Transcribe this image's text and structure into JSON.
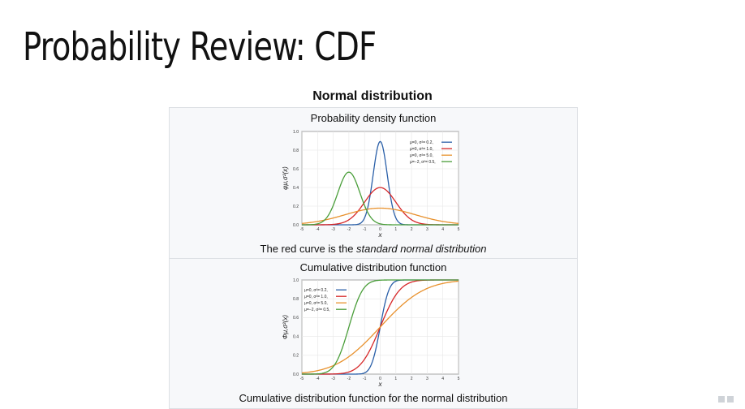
{
  "slide": {
    "title": "Probability Review: CDF"
  },
  "figure": {
    "heading": "Normal distribution",
    "pdf_title": "Probability density function",
    "pdf_caption_prefix": "The red curve is the ",
    "pdf_caption_italic": "standard normal distribution",
    "cdf_title": "Cumulative distribution function",
    "cdf_caption": "Cumulative distribution function for the normal distribution"
  },
  "chart_data": [
    {
      "type": "line",
      "title": "Probability density function",
      "xlabel": "x",
      "ylabel": "φμ,σ²(x)",
      "xlim": [
        -5,
        5
      ],
      "ylim": [
        0,
        1.0
      ],
      "xticks": [
        -5,
        -4,
        -3,
        -2,
        -1,
        0,
        1,
        2,
        3,
        4,
        5
      ],
      "yticks": [
        0.0,
        0.2,
        0.4,
        0.6,
        0.8,
        1.0
      ],
      "grid": true,
      "legend_position": "top-right",
      "series": [
        {
          "name": "μ=0,   σ²= 0.2,",
          "mu": 0,
          "var": 0.2,
          "color": "#2a5fa8",
          "x": [
            -1.5,
            -1,
            -0.75,
            -0.5,
            -0.25,
            0,
            0.25,
            0.5,
            0.75,
            1,
            1.5
          ],
          "values": [
            0.0033,
            0.0733,
            0.2183,
            0.4546,
            0.7446,
            0.8921,
            0.7446,
            0.4546,
            0.2183,
            0.0733,
            0.0033
          ]
        },
        {
          "name": "μ=0,   σ²= 1.0,",
          "mu": 0,
          "var": 1.0,
          "color": "#d62728",
          "x": [
            -4,
            -3,
            -2,
            -1,
            0,
            1,
            2,
            3,
            4
          ],
          "values": [
            0.0001,
            0.0044,
            0.054,
            0.242,
            0.3989,
            0.242,
            0.054,
            0.0044,
            0.0001
          ]
        },
        {
          "name": "μ=0,   σ²= 5.0,",
          "mu": 0,
          "var": 5.0,
          "color": "#e8912d",
          "x": [
            -5,
            -4,
            -3,
            -2,
            -1,
            0,
            1,
            2,
            3,
            4,
            5
          ],
          "values": [
            0.0146,
            0.0361,
            0.0727,
            0.1196,
            0.1606,
            0.1784,
            0.1606,
            0.1196,
            0.0727,
            0.0361,
            0.0146
          ]
        },
        {
          "name": "μ=−2, σ²= 0.5,",
          "mu": -2,
          "var": 0.5,
          "color": "#4a9e3a",
          "x": [
            -4,
            -3.5,
            -3,
            -2.5,
            -2,
            -1.5,
            -1,
            -0.5,
            0
          ],
          "values": [
            0.0103,
            0.0833,
            0.2076,
            0.4394,
            0.5642,
            0.4394,
            0.2076,
            0.0833,
            0.0103
          ]
        }
      ]
    },
    {
      "type": "line",
      "title": "Cumulative distribution function",
      "xlabel": "x",
      "ylabel": "Φμ,σ²(x)",
      "xlim": [
        -5,
        5
      ],
      "ylim": [
        0,
        1.0
      ],
      "xticks": [
        -5,
        -4,
        -3,
        -2,
        -1,
        0,
        1,
        2,
        3,
        4,
        5
      ],
      "yticks": [
        0.0,
        0.2,
        0.4,
        0.6,
        0.8,
        1.0
      ],
      "grid": true,
      "legend_position": "top-left",
      "series": [
        {
          "name": "μ=0,   σ²= 0.2,",
          "mu": 0,
          "var": 0.2,
          "color": "#2a5fa8",
          "x": [
            -1.5,
            -1,
            -0.5,
            0,
            0.5,
            1,
            1.5
          ],
          "values": [
            0.0004,
            0.0127,
            0.1318,
            0.5,
            0.8682,
            0.9873,
            0.9996
          ]
        },
        {
          "name": "μ=0,   σ²= 1.0,",
          "mu": 0,
          "var": 1.0,
          "color": "#d62728",
          "x": [
            -3,
            -2,
            -1,
            0,
            1,
            2,
            3
          ],
          "values": [
            0.0013,
            0.0228,
            0.1587,
            0.5,
            0.8413,
            0.9772,
            0.9987
          ]
        },
        {
          "name": "μ=0,   σ²= 5.0,",
          "mu": 0,
          "var": 5.0,
          "color": "#e8912d",
          "x": [
            -5,
            -3,
            -1,
            0,
            1,
            3,
            5
          ],
          "values": [
            0.0127,
            0.0899,
            0.3274,
            0.5,
            0.6726,
            0.9101,
            0.9873
          ]
        },
        {
          "name": "μ=−2, σ²= 0.5,",
          "mu": -2,
          "var": 0.5,
          "color": "#4a9e3a",
          "x": [
            -4,
            -3,
            -2,
            -1,
            0
          ],
          "values": [
            0.0023,
            0.0786,
            0.5,
            0.9214,
            0.9977
          ]
        }
      ]
    }
  ]
}
